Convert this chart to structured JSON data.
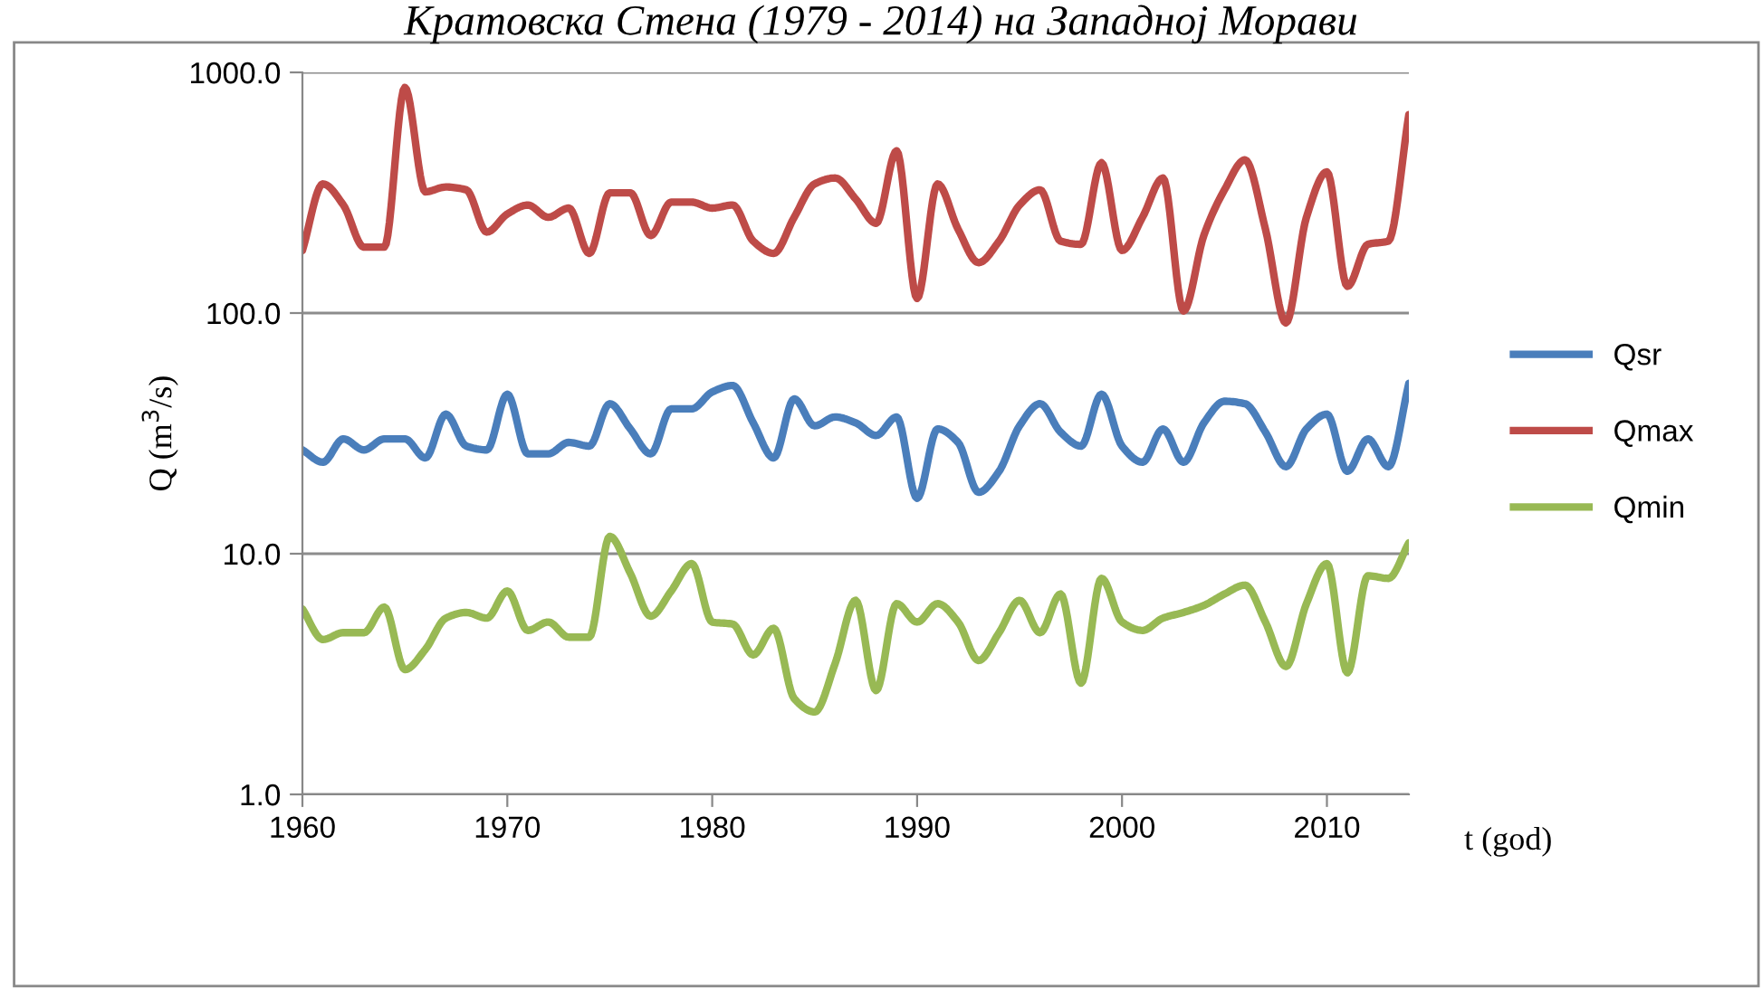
{
  "chart_data": {
    "type": "line",
    "title": "Кратовска Стена (1979 - 2014) на Западној Морави",
    "xlabel": "t (god)",
    "ylabel": "Q (m$^{3}$/s)",
    "x": [
      1960,
      1961,
      1962,
      1963,
      1964,
      1965,
      1966,
      1967,
      1968,
      1969,
      1970,
      1971,
      1972,
      1973,
      1974,
      1975,
      1976,
      1977,
      1978,
      1979,
      1980,
      1981,
      1982,
      1983,
      1984,
      1985,
      1986,
      1987,
      1988,
      1989,
      1990,
      1991,
      1992,
      1993,
      1994,
      1995,
      1996,
      1997,
      1998,
      1999,
      2000,
      2001,
      2002,
      2003,
      2004,
      2005,
      2006,
      2007,
      2008,
      2009,
      2010,
      2011,
      2012,
      2013,
      2014
    ],
    "series": [
      {
        "name": "Qsr",
        "color": "#4a7ebb",
        "values": [
          27,
          24,
          30,
          27,
          30,
          30,
          25,
          38,
          28,
          27,
          46,
          26,
          26,
          29,
          28,
          42,
          33,
          26,
          40,
          40,
          47,
          50,
          35,
          25,
          44,
          34,
          37,
          35,
          31,
          37,
          17,
          33,
          29,
          18,
          22,
          34,
          42,
          32,
          28,
          46,
          28,
          24,
          33,
          24,
          35,
          43,
          42,
          32,
          23,
          33,
          38,
          22,
          30,
          23,
          51
        ]
      },
      {
        "name": "Qmax",
        "color": "#be4b48",
        "values": [
          182,
          344,
          281,
          188,
          188,
          866,
          319,
          334,
          325,
          217,
          258,
          281,
          250,
          273,
          177,
          316,
          316,
          210,
          289,
          289,
          273,
          281,
          199,
          177,
          250,
          344,
          364,
          298,
          236,
          472,
          115,
          344,
          223,
          162,
          199,
          281,
          325,
          199,
          193,
          421,
          182,
          250,
          364,
          102,
          211,
          325,
          433,
          223,
          91,
          250,
          386,
          129,
          193,
          199,
          668
        ]
      },
      {
        "name": "Qmin",
        "color": "#98b954",
        "values": [
          5.9,
          4.4,
          4.7,
          4.7,
          6.0,
          3.3,
          4.0,
          5.4,
          5.7,
          5.4,
          7.0,
          4.8,
          5.2,
          4.5,
          4.5,
          11.8,
          8.3,
          5.5,
          7.0,
          9.1,
          5.2,
          5.1,
          3.8,
          4.9,
          2.5,
          2.2,
          3.5,
          6.4,
          2.7,
          6.2,
          5.2,
          6.2,
          5.2,
          3.6,
          4.7,
          6.4,
          4.7,
          6.8,
          2.9,
          7.9,
          5.2,
          4.8,
          5.4,
          5.7,
          6.1,
          6.8,
          7.4,
          5.2,
          3.4,
          6.2,
          9.1,
          3.2,
          8.1,
          7.9,
          11.1
        ]
      }
    ],
    "log": "y",
    "xlim": [
      1960,
      2014
    ],
    "xticks": [
      1960,
      1970,
      1980,
      1990,
      2000,
      2010
    ],
    "ylim": [
      1,
      1000
    ],
    "yticks": [
      {
        "value": 1,
        "label": "1.0"
      },
      {
        "value": 10,
        "label": "10.0"
      },
      {
        "value": 100,
        "label": "100.0"
      },
      {
        "value": 1000,
        "label": "1000.0"
      }
    ],
    "grid": "y",
    "legend": "right",
    "marker": "none",
    "line_style": "solid"
  }
}
